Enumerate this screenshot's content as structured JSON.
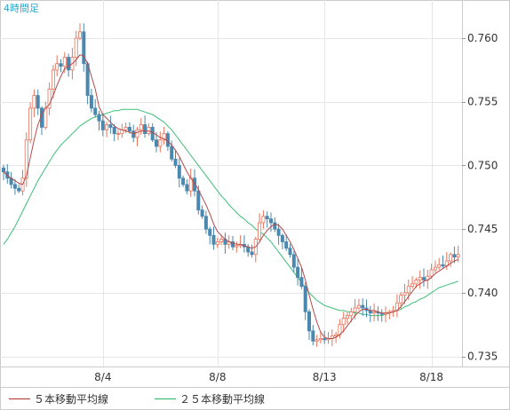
{
  "chart_data": {
    "type": "candlestick",
    "period_label": "4時間足",
    "x_tick_labels": [
      "8/4",
      "8/8",
      "8/13",
      "8/18"
    ],
    "x_tick_candle_index": [
      26,
      56,
      84,
      112
    ],
    "y_tick_labels": [
      "0.760",
      "0.755",
      "0.750",
      "0.745",
      "0.740",
      "0.735"
    ],
    "y_ticks": [
      0.76,
      0.755,
      0.75,
      0.745,
      0.74,
      0.735
    ],
    "ylim": [
      0.7342,
      0.763
    ],
    "grid": true,
    "colors": {
      "up": "#e8745c",
      "down": "#4a88b0",
      "ma5": "#b54a4a",
      "ma25": "#3dbf78",
      "grid": "#e6e6e6",
      "border": "#cccccc"
    },
    "legend": [
      {
        "name": "５本移動平均線",
        "color": "#b54a4a"
      },
      {
        "name": "２５本移動平均線",
        "color": "#3dbf78"
      }
    ],
    "closes": [
      0.7495,
      0.749,
      0.7485,
      0.7482,
      0.748,
      0.749,
      0.752,
      0.7545,
      0.7555,
      0.7545,
      0.753,
      0.7545,
      0.756,
      0.7575,
      0.758,
      0.7578,
      0.7585,
      0.7575,
      0.7585,
      0.76,
      0.7605,
      0.758,
      0.7555,
      0.7545,
      0.754,
      0.7535,
      0.7528,
      0.7532,
      0.753,
      0.7525,
      0.7525,
      0.7528,
      0.753,
      0.7527,
      0.7522,
      0.7528,
      0.7532,
      0.7525,
      0.753,
      0.752,
      0.7515,
      0.752,
      0.7525,
      0.7515,
      0.7505,
      0.75,
      0.749,
      0.7485,
      0.748,
      0.749,
      0.748,
      0.7465,
      0.746,
      0.745,
      0.7445,
      0.7438,
      0.744,
      0.7442,
      0.7438,
      0.744,
      0.7436,
      0.7437,
      0.7438,
      0.7436,
      0.7432,
      0.743,
      0.7442,
      0.7455,
      0.746,
      0.7458,
      0.7455,
      0.745,
      0.7445,
      0.744,
      0.7435,
      0.743,
      0.742,
      0.7412,
      0.7405,
      0.7385,
      0.737,
      0.7362,
      0.7363,
      0.7364,
      0.7363,
      0.7364,
      0.7366,
      0.7367,
      0.7375,
      0.738,
      0.7382,
      0.7385,
      0.7388,
      0.739,
      0.7388,
      0.7386,
      0.7384,
      0.7385,
      0.7384,
      0.7383,
      0.7384,
      0.7385,
      0.7386,
      0.7392,
      0.7398,
      0.74,
      0.7405,
      0.7407,
      0.741,
      0.7412,
      0.741,
      0.7413,
      0.7418,
      0.742,
      0.7422,
      0.7421,
      0.7425,
      0.743,
      0.7428,
      0.743
    ],
    "ma5": [
      0.7495,
      0.7492,
      0.749,
      0.7488,
      0.7486,
      0.7485,
      0.7492,
      0.7506,
      0.752,
      0.7532,
      0.754,
      0.7545,
      0.7548,
      0.7555,
      0.7563,
      0.757,
      0.7576,
      0.7578,
      0.758,
      0.7583,
      0.7587,
      0.7586,
      0.758,
      0.757,
      0.756,
      0.7546,
      0.754,
      0.7537,
      0.7534,
      0.7531,
      0.7529,
      0.7528,
      0.7527,
      0.7526,
      0.7525,
      0.7526,
      0.7527,
      0.7527,
      0.7527,
      0.7526,
      0.7524,
      0.7522,
      0.7521,
      0.7519,
      0.7516,
      0.7512,
      0.7507,
      0.7501,
      0.7495,
      0.749,
      0.7486,
      0.7481,
      0.7475,
      0.7469,
      0.7462,
      0.7454,
      0.7448,
      0.7445,
      0.7442,
      0.744,
      0.7439,
      0.7438,
      0.7438,
      0.7437,
      0.7436,
      0.7435,
      0.7436,
      0.744,
      0.7445,
      0.7449,
      0.7452,
      0.7454,
      0.7453,
      0.745,
      0.7445,
      0.744,
      0.7434,
      0.7427,
      0.742,
      0.741,
      0.7398,
      0.7387,
      0.7377,
      0.7369,
      0.7365,
      0.7364,
      0.7364,
      0.7365,
      0.7367,
      0.737,
      0.7374,
      0.7378,
      0.7382,
      0.7385,
      0.7387,
      0.7387,
      0.7386,
      0.7386,
      0.7385,
      0.7384,
      0.7384,
      0.7384,
      0.7385,
      0.7386,
      0.7389,
      0.7393,
      0.7397,
      0.7401,
      0.7405,
      0.7407,
      0.7409,
      0.741,
      0.7412,
      0.7415,
      0.7417,
      0.7419,
      0.7421,
      0.7423,
      0.7425,
      0.7426
    ],
    "ma25": [
      0.7438,
      0.7442,
      0.7447,
      0.7452,
      0.7458,
      0.7464,
      0.747,
      0.7476,
      0.7482,
      0.7488,
      0.7493,
      0.7498,
      0.7503,
      0.7508,
      0.7512,
      0.7516,
      0.7519,
      0.7522,
      0.7525,
      0.7528,
      0.7531,
      0.7533,
      0.7535,
      0.7537,
      0.7538,
      0.7539,
      0.754,
      0.7541,
      0.7542,
      0.7543,
      0.7543,
      0.7544,
      0.7544,
      0.7544,
      0.7544,
      0.7544,
      0.7543,
      0.7542,
      0.7541,
      0.754,
      0.7538,
      0.7536,
      0.7534,
      0.7531,
      0.7528,
      0.7524,
      0.752,
      0.7516,
      0.7512,
      0.7508,
      0.7504,
      0.75,
      0.7496,
      0.7492,
      0.7488,
      0.7484,
      0.748,
      0.7476,
      0.7473,
      0.7469,
      0.7466,
      0.7463,
      0.746,
      0.7458,
      0.7455,
      0.7453,
      0.745,
      0.7448,
      0.7446,
      0.7443,
      0.744,
      0.7436,
      0.7432,
      0.7428,
      0.7424,
      0.742,
      0.7416,
      0.7412,
      0.7408,
      0.7404,
      0.74,
      0.7397,
      0.7394,
      0.7392,
      0.739,
      0.7389,
      0.7388,
      0.7387,
      0.7386,
      0.7386,
      0.7385,
      0.7385,
      0.7384,
      0.7384,
      0.7383,
      0.7383,
      0.7382,
      0.7382,
      0.7382,
      0.7382,
      0.7383,
      0.7384,
      0.7385,
      0.7386,
      0.7387,
      0.7389,
      0.739,
      0.7392,
      0.7393,
      0.7395,
      0.7396,
      0.7398,
      0.74,
      0.7402,
      0.7404,
      0.7405,
      0.7406,
      0.7407,
      0.7408,
      0.7409
    ]
  }
}
